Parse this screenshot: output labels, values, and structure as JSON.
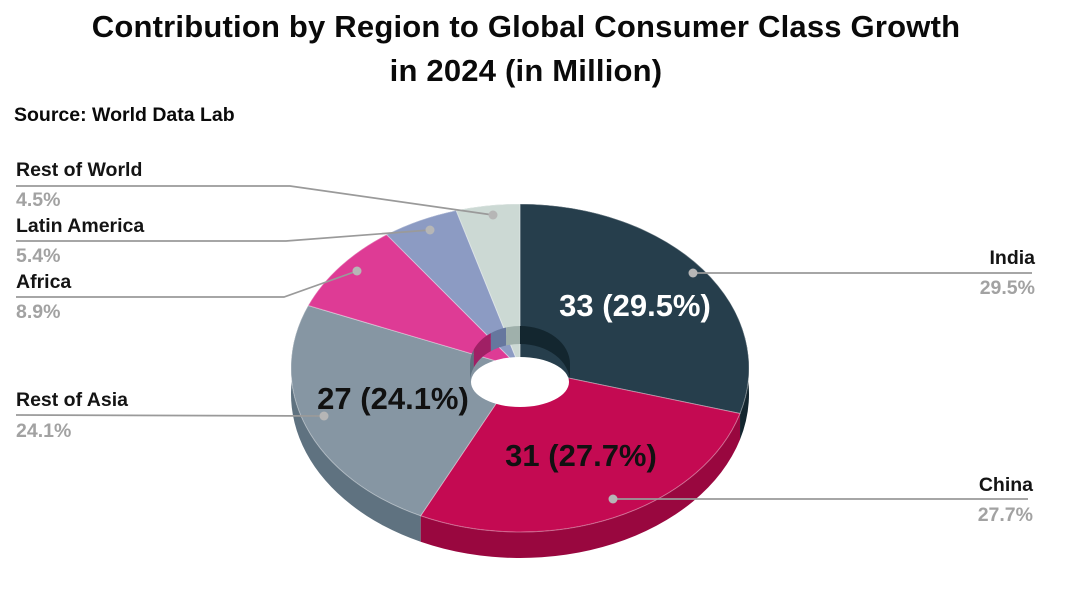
{
  "title": {
    "line1": "Contribution by Region to Global Consumer Class Growth",
    "line2": "in 2024 (in Million)"
  },
  "source": "Source: World Data Lab",
  "chart_data": {
    "type": "pie",
    "donut": true,
    "title": "Contribution by Region to Global Consumer Class Growth in 2024 (in Million)",
    "source": "World Data Lab",
    "unit": "million people",
    "start_angle": "12-oclock",
    "direction": "clockwise",
    "legend_position": "callouts",
    "slices": [
      {
        "name": "India",
        "value": 33,
        "pct": 29.5,
        "label": "33 (29.5%)",
        "color": "#263e4c",
        "side_color": "#13262f"
      },
      {
        "name": "China",
        "value": 31,
        "pct": 27.7,
        "label": "31 (27.7%)",
        "color": "#c40a52",
        "side_color": "#99073f"
      },
      {
        "name": "Rest of Asia",
        "value": 27,
        "pct": 24.1,
        "label": "27 (24.1%)",
        "color": "#8696a3",
        "side_color": "#5f7280"
      },
      {
        "name": "Africa",
        "pct": 8.9,
        "label": "",
        "color": "#de3b95",
        "side_color": "#a02065"
      },
      {
        "name": "Latin America",
        "pct": 5.4,
        "label": "",
        "color": "#8c9bc3",
        "side_color": "#66779e"
      },
      {
        "name": "Rest of World",
        "pct": 4.5,
        "label": "",
        "color": "#ccd9d4",
        "side_color": "#9fb0ab"
      }
    ]
  },
  "callouts_left": [
    {
      "name": "Rest of World",
      "pct": "4.5%"
    },
    {
      "name": "Latin America",
      "pct": "5.4%"
    },
    {
      "name": "Africa",
      "pct": "8.9%"
    },
    {
      "name": "Rest of Asia",
      "pct": "24.1%"
    }
  ],
  "callouts_right": [
    {
      "name": "India",
      "pct": "29.5%"
    },
    {
      "name": "China",
      "pct": "27.7%"
    }
  ],
  "colors": {
    "leader_line": "#9a9a9a",
    "leader_dot": "#b6b6b6",
    "pct_text": "#a2a2a2",
    "title_text": "#0a0a0a"
  }
}
